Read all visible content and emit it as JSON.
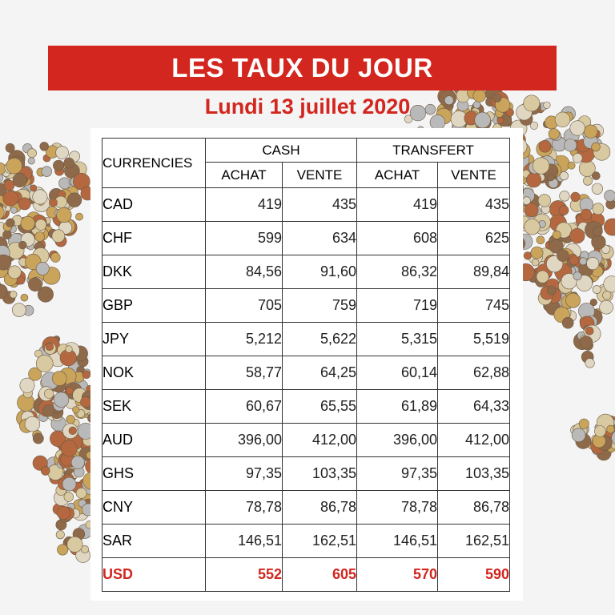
{
  "header": {
    "title": "LES TAUX DU JOUR",
    "date": "Lundi 13 juillet 2020"
  },
  "table": {
    "currencies_label": "CURRENCIES",
    "groups": [
      "CASH",
      "TRANSFERT"
    ],
    "subheaders": [
      "ACHAT",
      "VENTE",
      "ACHAT",
      "VENTE"
    ],
    "rows": [
      {
        "code": "CAD",
        "values": [
          "419",
          "435",
          "419",
          "435"
        ]
      },
      {
        "code": "CHF",
        "values": [
          "599",
          "634",
          "608",
          "625"
        ]
      },
      {
        "code": "DKK",
        "values": [
          "84,56",
          "91,60",
          "86,32",
          "89,84"
        ]
      },
      {
        "code": "GBP",
        "values": [
          "705",
          "759",
          "719",
          "745"
        ]
      },
      {
        "code": "JPY",
        "values": [
          "5,212",
          "5,622",
          "5,315",
          "5,519"
        ]
      },
      {
        "code": "NOK",
        "values": [
          "58,77",
          "64,25",
          "60,14",
          "62,88"
        ]
      },
      {
        "code": "SEK",
        "values": [
          "60,67",
          "65,55",
          "61,89",
          "64,33"
        ]
      },
      {
        "code": "AUD",
        "values": [
          "396,00",
          "412,00",
          "396,00",
          "412,00"
        ]
      },
      {
        "code": "GHS",
        "values": [
          "97,35",
          "103,35",
          "97,35",
          "103,35"
        ]
      },
      {
        "code": "CNY",
        "values": [
          "78,78",
          "86,78",
          "78,78",
          "86,78"
        ]
      },
      {
        "code": "SAR",
        "values": [
          "146,51",
          "162,51",
          "146,51",
          "162,51"
        ]
      },
      {
        "code": "USD",
        "values": [
          "552",
          "605",
          "570",
          "590"
        ]
      }
    ]
  },
  "colors": {
    "accent": "#d2261e",
    "background": "#f4f4f4",
    "coin_gold": "#c9a45a",
    "coin_copper": "#b5683f",
    "coin_silver": "#b9b9b9"
  }
}
